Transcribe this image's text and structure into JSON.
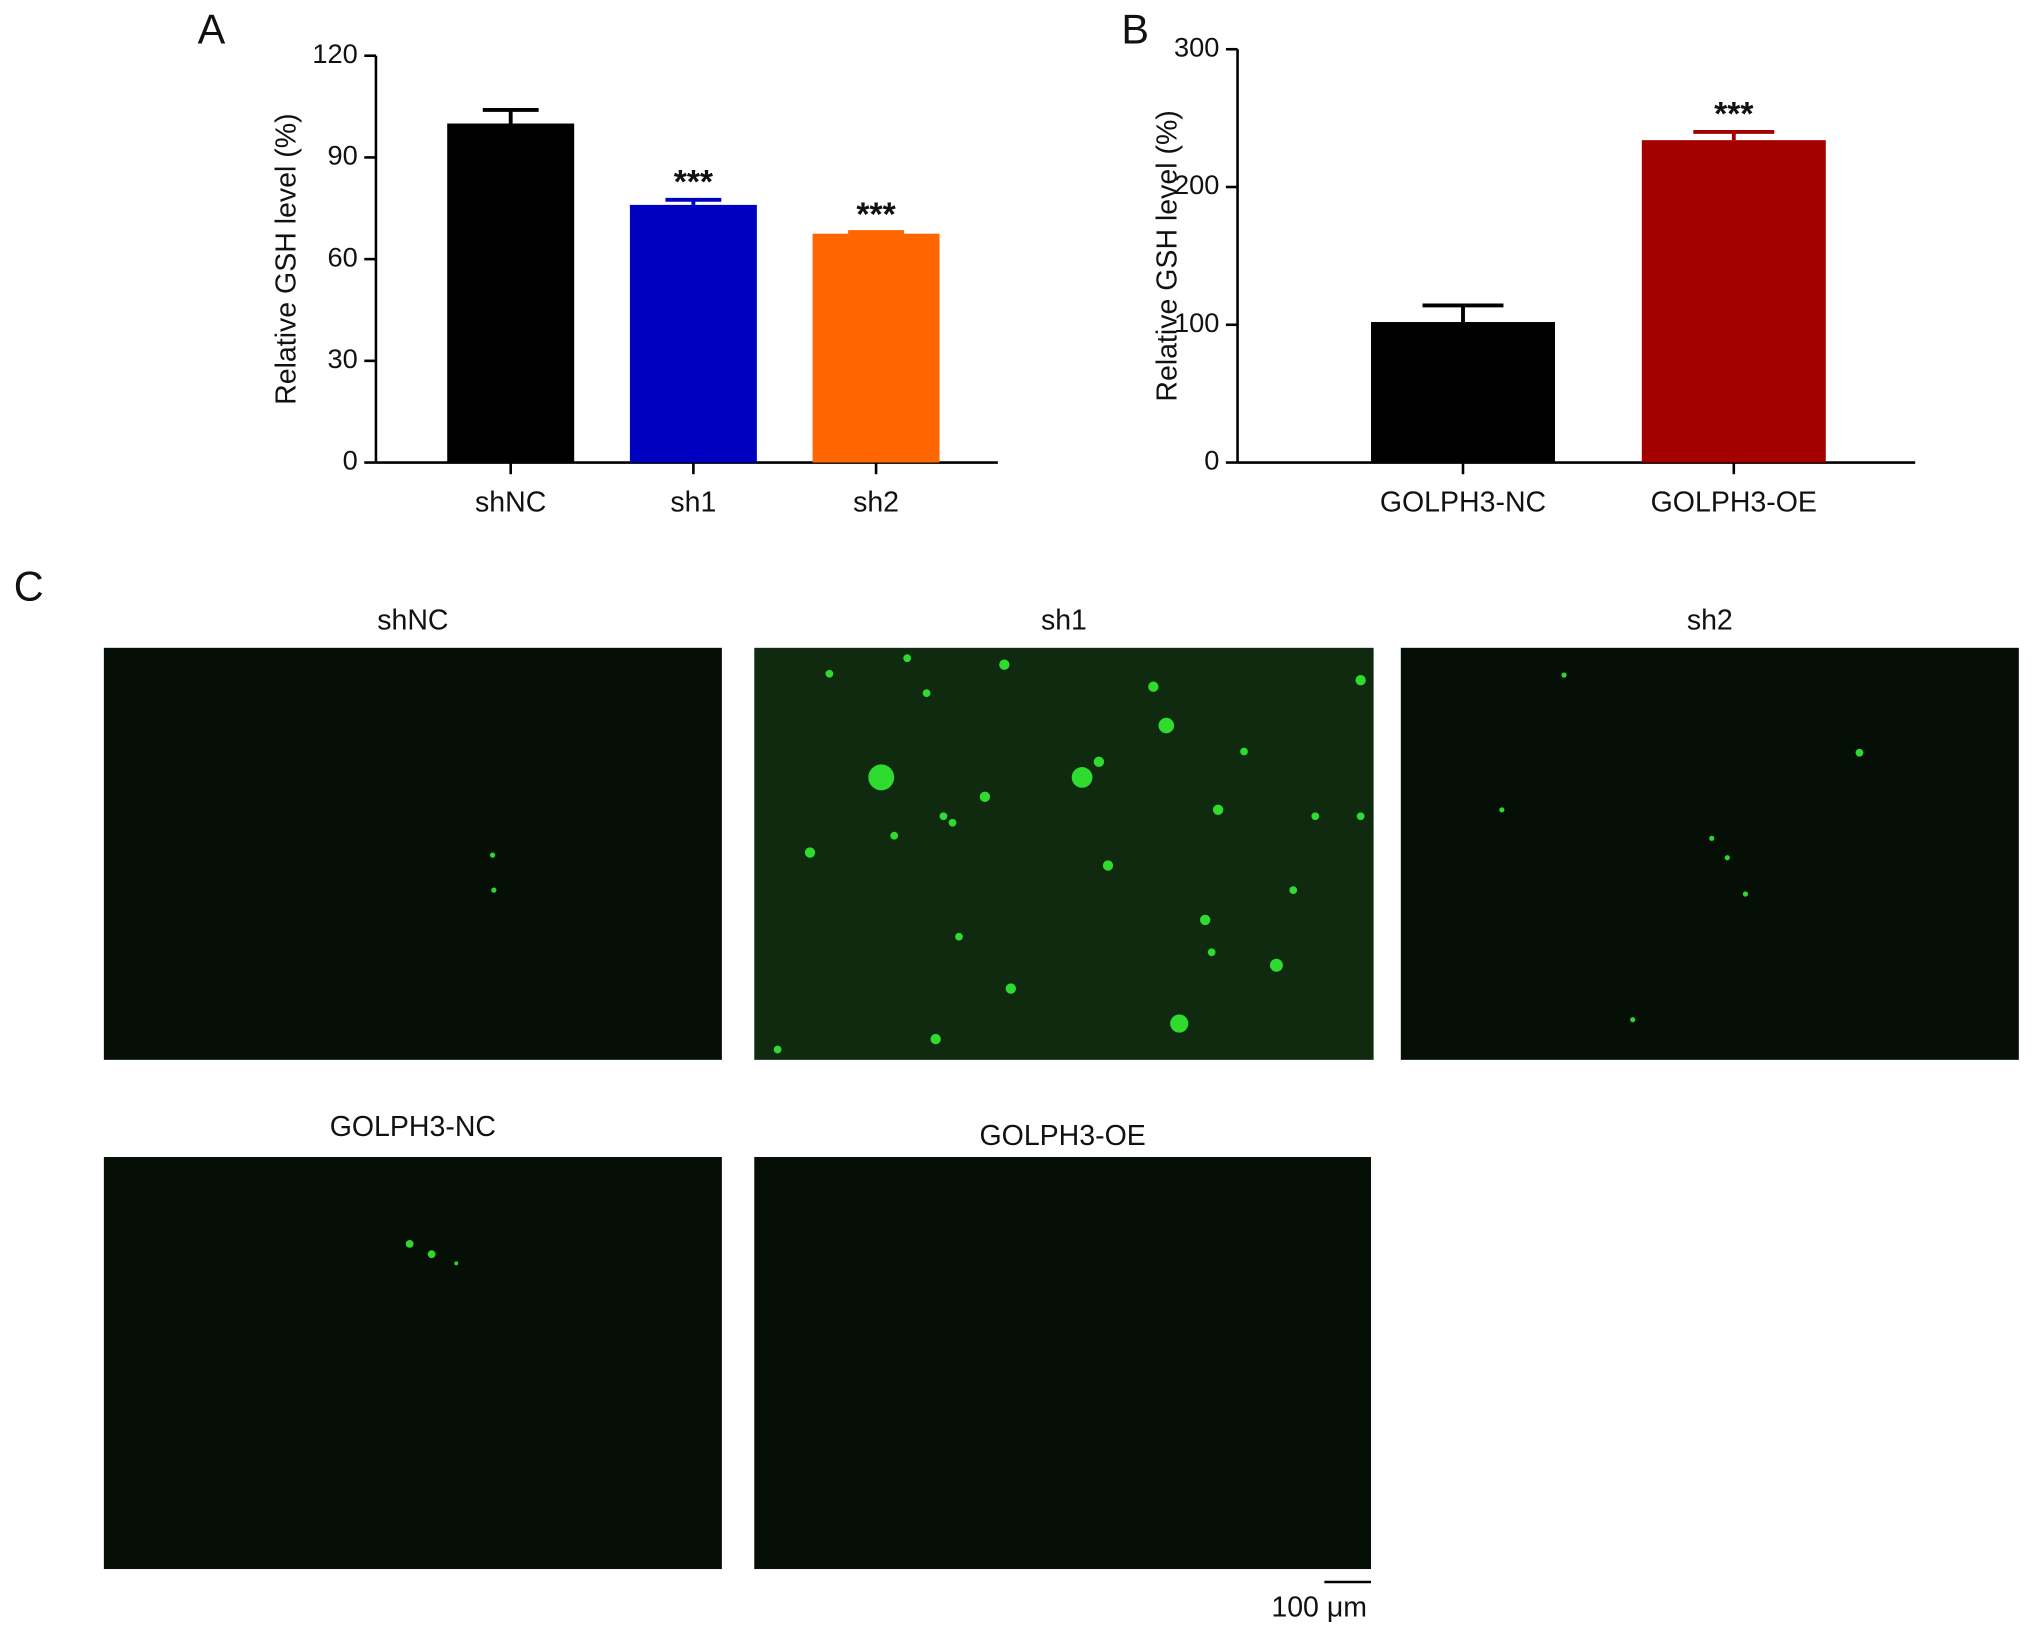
{
  "panel_labels": [
    "A",
    "B",
    "C"
  ],
  "chart_data": [
    {
      "type": "bar",
      "ylabel": "Relative GSH level (%)",
      "categories": [
        "shNC",
        "sh1",
        "sh2"
      ],
      "values": [
        100,
        76,
        67.5
      ],
      "errors": [
        4,
        1.5,
        0.5
      ],
      "colors": [
        "#000000",
        "#0000c0",
        "#ff6600"
      ],
      "annotations": [
        null,
        "***",
        "***"
      ],
      "ylim": [
        0,
        120
      ],
      "yticks": [
        0,
        30,
        60,
        90,
        120
      ]
    },
    {
      "type": "bar",
      "ylabel": "Relative GSH level (%)",
      "categories": [
        "GOLPH3-NC",
        "GOLPH3-OE"
      ],
      "values": [
        102,
        234
      ],
      "errors": [
        12,
        6
      ],
      "colors": [
        "#000000",
        "#a50000"
      ],
      "annotations": [
        null,
        "***"
      ],
      "ylim": [
        0,
        300
      ],
      "yticks": [
        0,
        100,
        200,
        300
      ]
    }
  ],
  "images": [
    {
      "title": "shNC"
    },
    {
      "title": "sh1"
    },
    {
      "title": "sh2"
    },
    {
      "title": "GOLPH3-NC"
    },
    {
      "title": "GOLPH3-OE"
    }
  ],
  "scale_bar": "100 μm"
}
